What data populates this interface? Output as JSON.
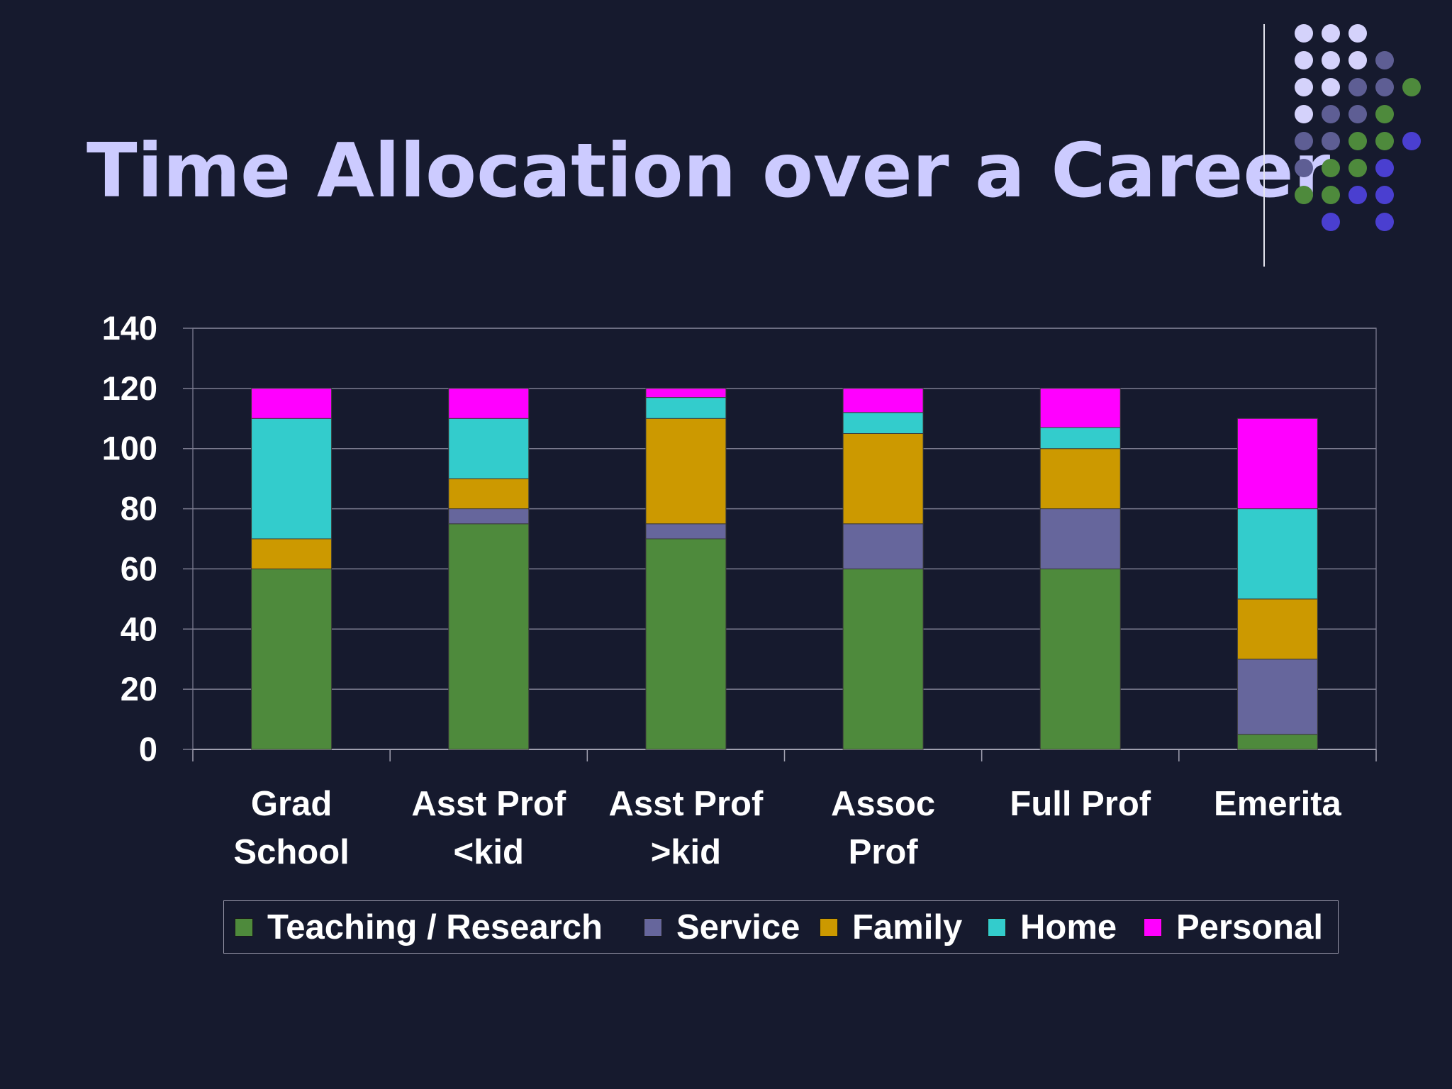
{
  "slide": {
    "title": "Time Allocation over a Career"
  },
  "decoration": {
    "dot_colors": {
      "lavender": "#d4d2fb",
      "slate": "#5e5e94",
      "green": "#4e8a3c",
      "indigo": "#4a3fd0"
    },
    "dot_pattern": [
      [
        "lavender",
        "lavender",
        "lavender",
        null,
        null
      ],
      [
        "lavender",
        "lavender",
        "lavender",
        "slate",
        null
      ],
      [
        "lavender",
        "lavender",
        "slate",
        "slate",
        "green"
      ],
      [
        "lavender",
        "slate",
        "slate",
        "green",
        null
      ],
      [
        "slate",
        "slate",
        "green",
        "green",
        "indigo"
      ],
      [
        "slate",
        "green",
        "green",
        "indigo",
        null
      ],
      [
        "green",
        "green",
        "indigo",
        "indigo",
        null
      ],
      [
        null,
        "indigo",
        null,
        "indigo",
        null
      ]
    ]
  },
  "chart_data": {
    "type": "bar",
    "stacked": true,
    "title": "",
    "xlabel": "",
    "ylabel": "",
    "ylim": [
      0,
      140
    ],
    "yticks": [
      "0",
      "20",
      "40",
      "60",
      "80",
      "100",
      "120",
      "140"
    ],
    "grid": true,
    "legend_position": "bottom",
    "categories": [
      "Grad\nSchool",
      "Asst Prof\n<kid",
      "Asst Prof\n>kid",
      "Assoc\nProf",
      "Full Prof",
      "Emerita"
    ],
    "series": [
      {
        "name": "Teaching / Research",
        "color": "#4e8a3c",
        "values": [
          60,
          75,
          70,
          60,
          60,
          5
        ]
      },
      {
        "name": "Service",
        "color": "#66669c",
        "values": [
          0,
          5,
          5,
          15,
          20,
          25
        ]
      },
      {
        "name": "Family",
        "color": "#cc9900",
        "values": [
          10,
          10,
          35,
          30,
          20,
          20
        ]
      },
      {
        "name": "Home",
        "color": "#33cccc",
        "values": [
          40,
          20,
          7,
          7,
          7,
          30
        ]
      },
      {
        "name": "Personal",
        "color": "#ff00ff",
        "values": [
          10,
          10,
          3,
          8,
          13,
          30
        ]
      }
    ]
  }
}
